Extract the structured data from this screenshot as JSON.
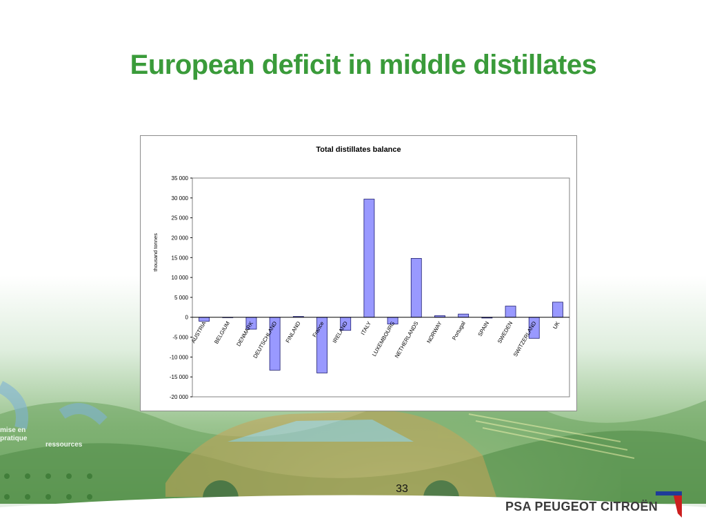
{
  "slide": {
    "title": "European deficit in middle distillates",
    "page_number": "33",
    "logo_text": "PSA PEUGEOT CITROËN",
    "background_labels": [
      "mise en",
      "pratique",
      "ressources"
    ]
  },
  "colors": {
    "title": "#3a9b3a",
    "bar_fill": "#9999ff",
    "bar_stroke": "#1a1a6e",
    "logo_red": "#cc1f1f",
    "logo_blue": "#1f3c99"
  },
  "chart_data": {
    "type": "bar",
    "title": "Total distillates balance",
    "ylabel": "thousand tonnes",
    "xlabel": "",
    "ylim": [
      -20000,
      35000
    ],
    "yticks": [
      35000,
      30000,
      25000,
      20000,
      15000,
      10000,
      5000,
      0,
      -5000,
      -10000,
      -15000,
      -20000
    ],
    "ytick_labels": [
      "35 000",
      "30 000",
      "25 000",
      "20 000",
      "15 000",
      "10 000",
      "5 000",
      "0",
      "-5 000",
      "-10 000",
      "-15 000",
      "-20 000"
    ],
    "grid": false,
    "categories": [
      "AUSTRIA",
      "BELGIUM",
      "DENMARK",
      "DEUTSCHLAND",
      "FINLAND",
      "France",
      "IRELAND",
      "ITALY",
      "LUXEMBOURG",
      "NETHERLANDS",
      "NORWAY",
      "Portugal",
      "SPAIN",
      "SWEDEN",
      "SWITZERLAND",
      "UK"
    ],
    "values": [
      -1000,
      0,
      -3000,
      -13300,
      200,
      -14000,
      -3300,
      29700,
      -1700,
      14800,
      400,
      800,
      -200,
      2800,
      -5300,
      3800
    ]
  }
}
